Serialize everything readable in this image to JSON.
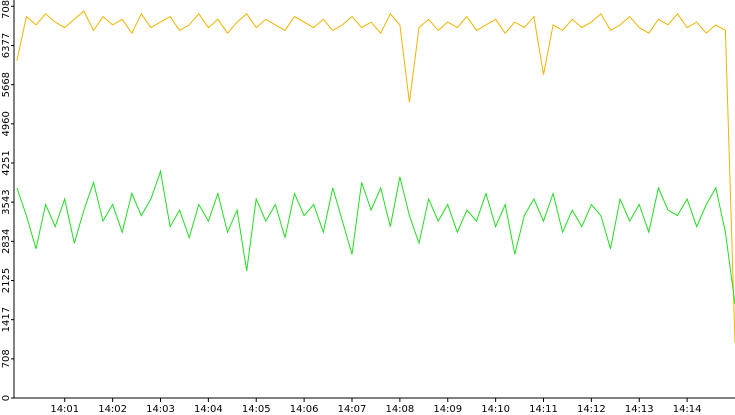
{
  "chart_data": {
    "type": "line",
    "x": [
      840,
      840.2,
      840.4,
      840.6,
      840.8,
      841,
      841.2,
      841.4,
      841.6,
      841.8,
      842,
      842.2,
      842.4,
      842.6,
      842.8,
      843,
      843.2,
      843.4,
      843.6,
      843.8,
      844,
      844.2,
      844.4,
      844.6,
      844.8,
      845,
      845.2,
      845.4,
      845.6,
      845.8,
      846,
      846.2,
      846.4,
      846.6,
      846.8,
      847,
      847.2,
      847.4,
      847.6,
      847.8,
      848,
      848.2,
      848.4,
      848.6,
      848.8,
      849,
      849.2,
      849.4,
      849.6,
      849.8,
      850,
      850.2,
      850.4,
      850.6,
      850.8,
      851,
      851.2,
      851.4,
      851.6,
      851.8,
      852,
      852.2,
      852.4,
      852.6,
      852.8,
      853,
      853.2,
      853.4,
      853.6,
      853.8,
      854,
      854.2,
      854.4,
      854.6,
      854.8,
      855
    ],
    "series": [
      {
        "color": "#f0b400",
        "values": [
          6100,
          6900,
          6750,
          6950,
          6800,
          6700,
          6850,
          7000,
          6650,
          6900,
          6750,
          6850,
          6600,
          6950,
          6700,
          6800,
          6900,
          6650,
          6750,
          6950,
          6700,
          6850,
          6600,
          6800,
          6950,
          6700,
          6850,
          6750,
          6650,
          6900,
          6800,
          6700,
          6850,
          6650,
          6750,
          6900,
          6700,
          6800,
          6600,
          6950,
          6750,
          5350,
          6700,
          6850,
          6650,
          6800,
          6700,
          6900,
          6650,
          6750,
          6850,
          6600,
          6800,
          6700,
          6900,
          5850,
          6750,
          6650,
          6850,
          6700,
          6800,
          6950,
          6650,
          6750,
          6900,
          6700,
          6600,
          6850,
          6750,
          6950,
          6700,
          6800,
          6600,
          6750,
          6650,
          1000
        ]
      },
      {
        "color": "#22dd22",
        "values": [
          3800,
          3300,
          2700,
          3500,
          3100,
          3600,
          2800,
          3400,
          3900,
          3200,
          3500,
          3000,
          3700,
          3300,
          3600,
          4100,
          3100,
          3400,
          2900,
          3500,
          3200,
          3700,
          3000,
          3400,
          2300,
          3600,
          3200,
          3500,
          2900,
          3700,
          3300,
          3500,
          3000,
          3800,
          3200,
          2600,
          3900,
          3400,
          3800,
          3100,
          4000,
          3300,
          2800,
          3600,
          3200,
          3500,
          3000,
          3400,
          3200,
          3700,
          3100,
          3500,
          2600,
          3300,
          3600,
          3200,
          3700,
          3000,
          3400,
          3100,
          3500,
          3300,
          2700,
          3600,
          3200,
          3500,
          3000,
          3800,
          3400,
          3300,
          3600,
          3100,
          3500,
          3800,
          3000,
          1700
        ]
      }
    ],
    "xlim": [
      839.94,
      855
    ],
    "xticks": [
      {
        "value": 841,
        "label": "14:01"
      },
      {
        "value": 842,
        "label": "14:02"
      },
      {
        "value": 843,
        "label": "14:03"
      },
      {
        "value": 844,
        "label": "14:04"
      },
      {
        "value": 845,
        "label": "14:05"
      },
      {
        "value": 846,
        "label": "14:06"
      },
      {
        "value": 847,
        "label": "14:07"
      },
      {
        "value": 848,
        "label": "14:08"
      },
      {
        "value": 849,
        "label": "14:09"
      },
      {
        "value": 850,
        "label": "14:10"
      },
      {
        "value": 851,
        "label": "14:11"
      },
      {
        "value": 852,
        "label": "14:12"
      },
      {
        "value": 853,
        "label": "14:13"
      },
      {
        "value": 854,
        "label": "14:14"
      }
    ],
    "ylim": [
      0,
      7200
    ],
    "yticks": [
      0,
      708,
      1417,
      2125,
      2834,
      3543,
      4251,
      4960,
      5668,
      6377,
      7086
    ]
  }
}
